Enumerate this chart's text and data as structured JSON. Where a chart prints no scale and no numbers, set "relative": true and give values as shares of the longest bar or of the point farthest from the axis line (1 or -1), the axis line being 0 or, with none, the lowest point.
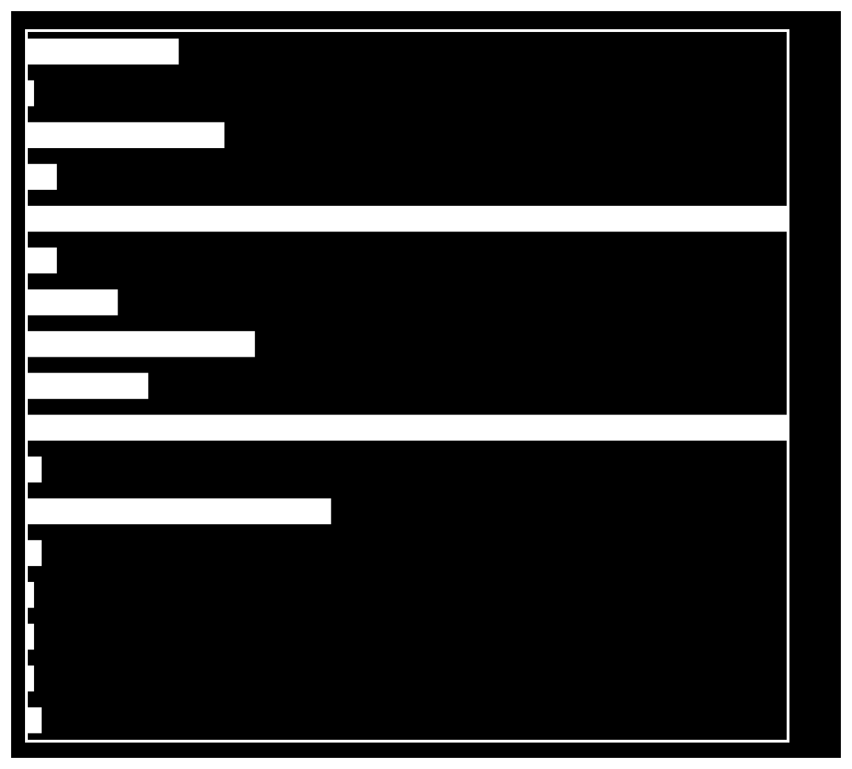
{
  "chart_data": {
    "type": "bar",
    "orientation": "horizontal",
    "relative": true,
    "categories": [
      null,
      null,
      null,
      null,
      null,
      null,
      null,
      null,
      null,
      null,
      null,
      null,
      null,
      null,
      null,
      null,
      null
    ],
    "values": [
      0.2,
      0.01,
      0.26,
      0.04,
      1,
      0.04,
      0.12,
      0.3,
      0.16,
      1,
      0.02,
      0.4,
      0.02,
      0.01,
      0.01,
      0.01,
      0.02
    ],
    "color": "#ffffff"
  }
}
